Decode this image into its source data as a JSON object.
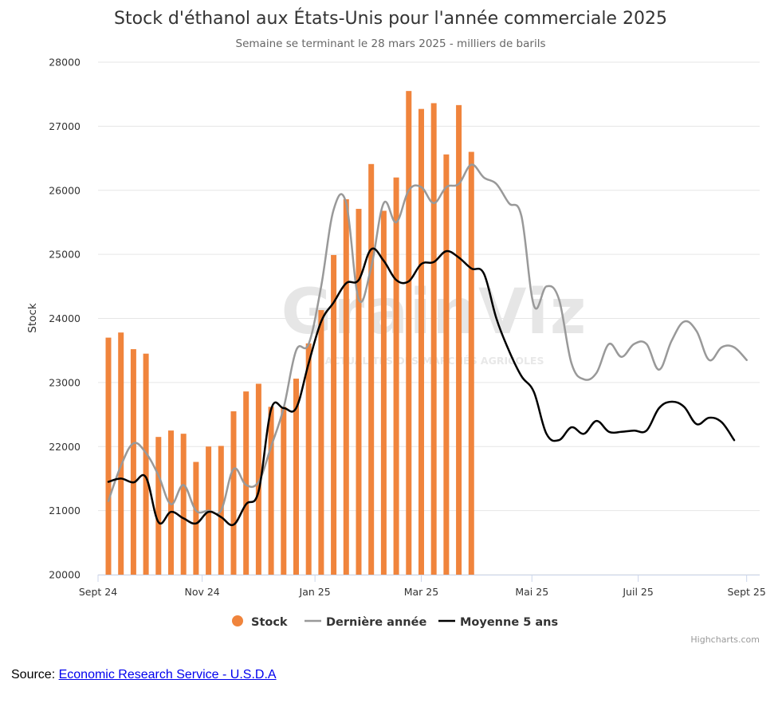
{
  "title": "Stock d'éthanol aux États-Unis pour l'année commerciale 2025",
  "subtitle": "Semaine se terminant le 28 mars 2025 - milliers de barils",
  "watermark": {
    "main": "GrainViz",
    "sub": "ACTUALITÉS DES MARCHÉS AGRICOLES"
  },
  "credits": "Highcharts.com",
  "source": {
    "prefix": "Source: ",
    "link_text": "Economic Research Service - U.S.D.A"
  },
  "chart_data": {
    "type": "bar",
    "title": "Stock d'éthanol aux États-Unis pour l'année commerciale 2025",
    "subtitle": "Semaine se terminant le 28 mars 2025 - milliers de barils",
    "ylabel": "Stock",
    "xlabel": "",
    "ylim": [
      20000,
      28000
    ],
    "yticks": [
      20000,
      21000,
      22000,
      23000,
      24000,
      25000,
      26000,
      27000,
      28000
    ],
    "xticks": [
      {
        "label": "Sept 24",
        "week": 0
      },
      {
        "label": "Nov 24",
        "week": 9.6
      },
      {
        "label": "Jan 25",
        "week": 20
      },
      {
        "label": "Mar 25",
        "week": 29.8
      },
      {
        "label": "Mai 25",
        "week": 40
      },
      {
        "label": "Juil 25",
        "week": 49.8
      },
      {
        "label": "Sept 25",
        "week": 59.8
      }
    ],
    "x_unit": "weeks since Sept 24",
    "xlim": [
      0,
      61
    ],
    "legend_position": "bottom-center",
    "grid": true,
    "series": [
      {
        "name": "Stock",
        "kind": "column",
        "color": "#f0843c",
        "values": [
          23700,
          23780,
          23520,
          23450,
          22150,
          22250,
          22200,
          21760,
          22000,
          22010,
          22550,
          22860,
          22980,
          22620,
          22620,
          23060,
          23610,
          24130,
          24990,
          25860,
          25710,
          26410,
          25680,
          26200,
          27550,
          27270,
          27360,
          26560,
          27330,
          26600
        ]
      },
      {
        "name": "Dernière année",
        "kind": "line",
        "color": "#999999",
        "values": [
          21150,
          21700,
          22050,
          21900,
          21550,
          21100,
          21400,
          21000,
          21000,
          21000,
          21650,
          21400,
          21450,
          22000,
          22600,
          23500,
          23600,
          24500,
          25700,
          25800,
          24300,
          24800,
          25800,
          25500,
          26000,
          26050,
          25800,
          26050,
          26100,
          26400,
          26200,
          26100,
          25800,
          25600,
          24200,
          24500,
          24300,
          23300,
          23050,
          23150,
          23600,
          23400,
          23600,
          23600,
          23200,
          23650,
          23950,
          23800,
          23350,
          23550,
          23550,
          23350
        ]
      },
      {
        "name": "Moyenne 5 ans",
        "kind": "line",
        "color": "#000000",
        "values": [
          21450,
          21500,
          21440,
          21520,
          20820,
          20980,
          20880,
          20800,
          20980,
          20900,
          20780,
          21100,
          21300,
          22580,
          22600,
          22600,
          23300,
          23950,
          24250,
          24550,
          24600,
          25080,
          24900,
          24600,
          24580,
          24850,
          24880,
          25050,
          24950,
          24780,
          24700,
          24000,
          23500,
          23100,
          22850,
          22200,
          22100,
          22300,
          22200,
          22400,
          22230,
          22230,
          22250,
          22250,
          22600,
          22700,
          22620,
          22350,
          22450,
          22380,
          22100
        ]
      }
    ],
    "line_x_start": [
      0,
      0
    ],
    "line_x_step": 1.1538
  }
}
